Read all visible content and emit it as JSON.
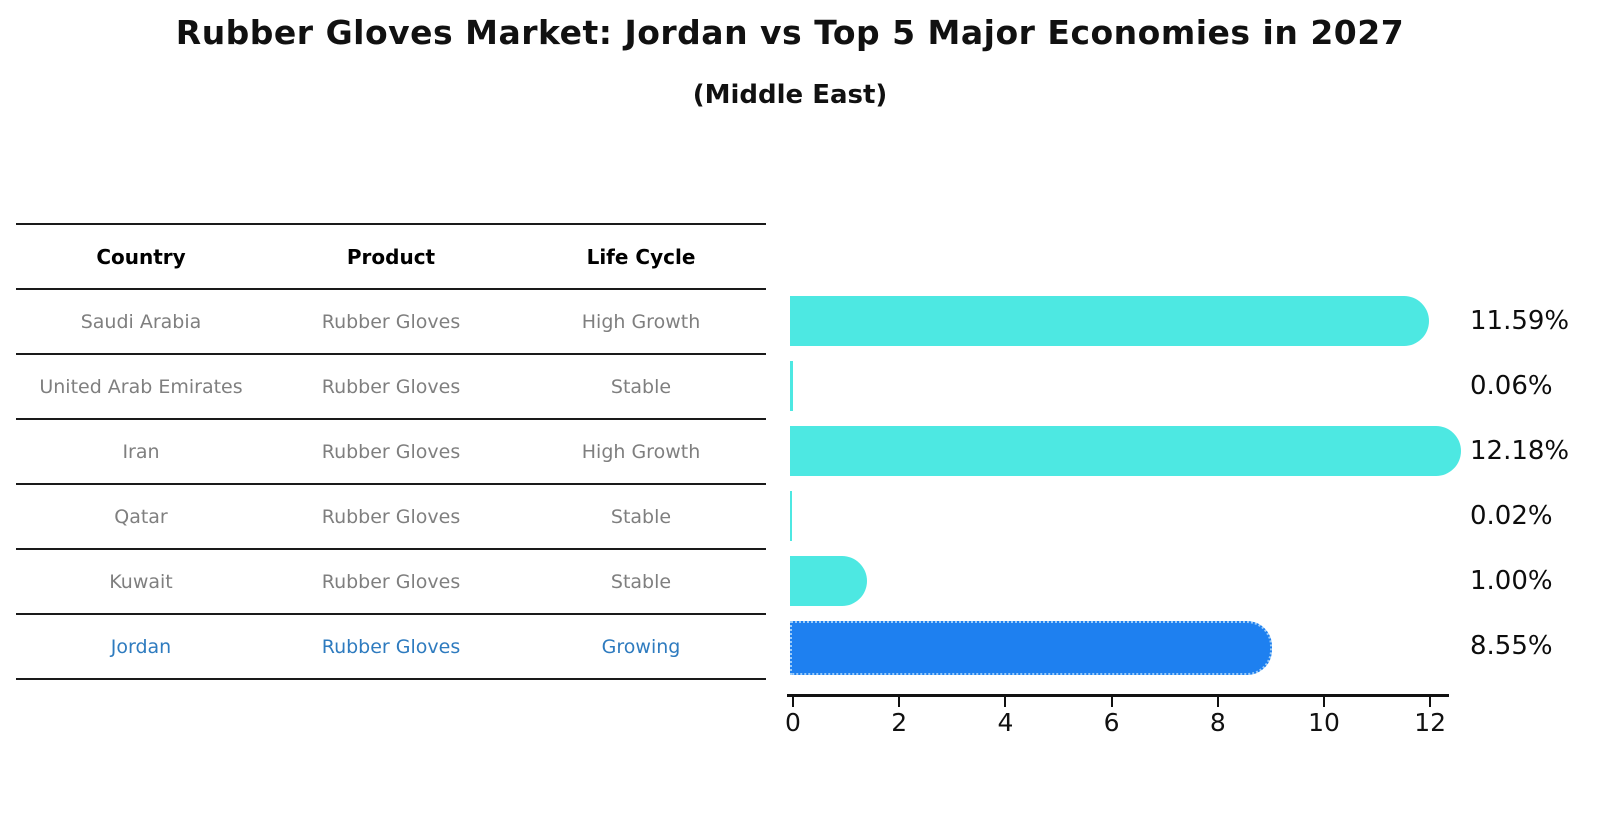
{
  "title": "Rubber Gloves Market: Jordan vs Top 5 Major Economies in 2027",
  "subtitle": "(Middle East)",
  "table": {
    "headers": [
      "Country",
      "Product",
      "Life Cycle"
    ],
    "rows": [
      {
        "country": "Saudi Arabia",
        "product": "Rubber Gloves",
        "life_cycle": "High Growth",
        "highlight": false
      },
      {
        "country": "United Arab Emirates",
        "product": "Rubber Gloves",
        "life_cycle": "Stable",
        "highlight": false
      },
      {
        "country": "Iran",
        "product": "Rubber Gloves",
        "life_cycle": "High Growth",
        "highlight": false
      },
      {
        "country": "Qatar",
        "product": "Rubber Gloves",
        "life_cycle": "Stable",
        "highlight": false
      },
      {
        "country": "Kuwait",
        "product": "Rubber Gloves",
        "life_cycle": "Stable",
        "highlight": false
      },
      {
        "country": "Jordan",
        "product": "Rubber Gloves",
        "life_cycle": "Growing",
        "highlight": true
      }
    ]
  },
  "chart_data": {
    "type": "bar",
    "orientation": "horizontal",
    "title": "Rubber Gloves Market: Jordan vs Top 5 Major Economies in 2027",
    "subtitle": "(Middle East)",
    "categories": [
      "Saudi Arabia",
      "United Arab Emirates",
      "Iran",
      "Qatar",
      "Kuwait",
      "Jordan"
    ],
    "values": [
      11.59,
      0.06,
      12.18,
      0.02,
      1.0,
      8.55
    ],
    "value_labels": [
      "11.59%",
      "0.06%",
      "12.18%",
      "0.02%",
      "1.00%",
      "8.55%"
    ],
    "x_ticks": [
      "0",
      "2",
      "4",
      "6",
      "8",
      "10",
      "12"
    ],
    "xlim": [
      0,
      12.5
    ],
    "grid": false,
    "legend": "none",
    "bar_color": "#4de8e2",
    "highlight_color": "#1e80f0",
    "highlight_index": 5,
    "highlight_border": "dotted"
  },
  "colors": {
    "highlight_text": "#2e7bbf",
    "row_text": "#7f7f7f",
    "header_text": "#000000",
    "axis": "#111111"
  }
}
